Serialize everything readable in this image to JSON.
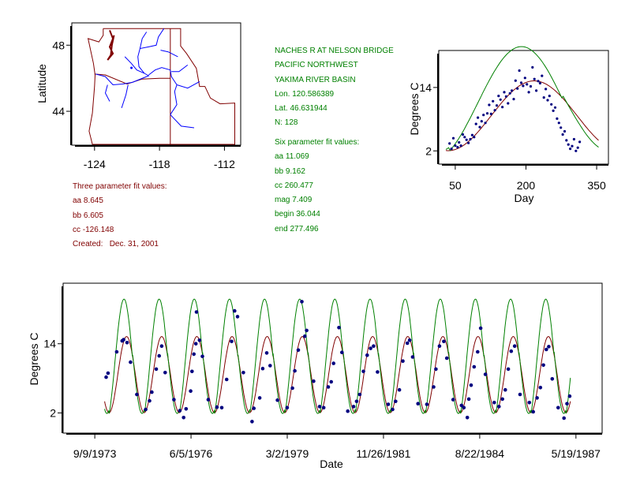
{
  "colors": {
    "site_info": "#008000",
    "three_param": "#800000",
    "points": "#000080",
    "fit3_line": "#800000",
    "fit6_line": "#008000",
    "map_border": "#800000",
    "map_rivers": "#0000ff",
    "frame": "#000000"
  },
  "site_info": {
    "station": "NACHES R AT NELSON BRIDGE",
    "region": "PACIFIC NORTHWEST",
    "basin": "YAKIMA RIVER BASIN",
    "lon": "Lon. 120.586389",
    "lat": "Lat. 46.631944",
    "n": "N: 128"
  },
  "six_param": {
    "heading": "Six parameter fit values:",
    "aa": "aa 11.069",
    "bb": "bb 9.162",
    "cc": "cc 260.477",
    "mag": "mag 7.409",
    "begin": "begin 36.044",
    "end": "end 277.496"
  },
  "three_param": {
    "heading": "Three parameter fit values:",
    "aa": "aa 8.645",
    "bb": "bb 6.605",
    "cc": "cc -126.148",
    "created": "Created:   Dec. 31, 2001"
  },
  "map": {
    "ylabel": "Latitude",
    "xticks": [
      -124,
      -118,
      -112
    ],
    "yticks": [
      44,
      48
    ],
    "xlim": [
      -126.1,
      -110.5
    ],
    "ylim": [
      41.95,
      49.35
    ],
    "site": {
      "lon": -120.59,
      "lat": 46.63
    },
    "state_line_lon": -117.0,
    "state_line_lat": 46.0
  },
  "chart_data": [
    {
      "type": "scatter",
      "title": "",
      "xlabel": "Day",
      "ylabel": "Degrees C",
      "xlim": [
        15,
        375
      ],
      "ylim": [
        -0.5,
        21.0
      ],
      "xticks": [
        50,
        200,
        350
      ],
      "yticks": [
        2,
        14
      ],
      "series": [
        {
          "kind": "points",
          "points": [
            [
              38,
              3.4
            ],
            [
              42,
              2.4
            ],
            [
              46,
              4.4
            ],
            [
              50,
              3.0
            ],
            [
              55,
              2.7
            ],
            [
              58,
              3.6
            ],
            [
              62,
              3.0
            ],
            [
              66,
              5.1
            ],
            [
              70,
              4.6
            ],
            [
              74,
              4.1
            ],
            [
              78,
              3.5
            ],
            [
              82,
              4.2
            ],
            [
              86,
              5.0
            ],
            [
              90,
              4.6
            ],
            [
              94,
              7.1
            ],
            [
              98,
              8.3
            ],
            [
              102,
              6.5
            ],
            [
              106,
              7.6
            ],
            [
              110,
              8.8
            ],
            [
              114,
              7.3
            ],
            [
              118,
              9.1
            ],
            [
              122,
              10.7
            ],
            [
              126,
              9.0
            ],
            [
              130,
              11.4
            ],
            [
              134,
              9.7
            ],
            [
              138,
              10.6
            ],
            [
              142,
              12.4
            ],
            [
              146,
              11.7
            ],
            [
              150,
              10.3
            ],
            [
              154,
              13.1
            ],
            [
              158,
              12.3
            ],
            [
              162,
              11.0
            ],
            [
              166,
              12.9
            ],
            [
              170,
              13.4
            ],
            [
              174,
              11.8
            ],
            [
              178,
              15.3
            ],
            [
              182,
              13.8
            ],
            [
              186,
              17.2
            ],
            [
              190,
              14.9
            ],
            [
              194,
              14.3
            ],
            [
              198,
              15.8
            ],
            [
              202,
              14.6
            ],
            [
              206,
              13.1
            ],
            [
              210,
              14.2
            ],
            [
              214,
              17.8
            ],
            [
              218,
              15.6
            ],
            [
              222,
              13.4
            ],
            [
              226,
              15.2
            ],
            [
              230,
              14.8
            ],
            [
              234,
              16.2
            ],
            [
              238,
              12.1
            ],
            [
              242,
              13.7
            ],
            [
              246,
              11.6
            ],
            [
              250,
              12.4
            ],
            [
              254,
              10.8
            ],
            [
              258,
              9.6
            ],
            [
              262,
              10.2
            ],
            [
              266,
              8.1
            ],
            [
              270,
              7.3
            ],
            [
              274,
              6.4
            ],
            [
              278,
              5.1
            ],
            [
              282,
              5.7
            ],
            [
              286,
              4.0
            ],
            [
              290,
              3.2
            ],
            [
              294,
              2.4
            ],
            [
              298,
              2.9
            ],
            [
              302,
              4.2
            ],
            [
              306,
              2.0
            ],
            [
              310,
              2.6
            ],
            [
              314,
              3.7
            ]
          ]
        },
        {
          "kind": "fit",
          "name": "",
          "model": "three_param",
          "aa": 8.645,
          "bb": 6.605,
          "cc": -126.148
        },
        {
          "kind": "fit",
          "name": "",
          "model": "six_param",
          "aa": 11.069,
          "bb": 9.162,
          "cc": 260.477,
          "mag": 7.409,
          "begin": 36.044,
          "end": 277.496
        }
      ]
    },
    {
      "type": "scatter",
      "title": "",
      "xlabel": "Date",
      "ylabel": "Degrees C",
      "xlim": [
        "1972-10-15",
        "1988-02-15"
      ],
      "ylim": [
        -1.5,
        24.5
      ],
      "yticks": [
        2,
        14
      ],
      "xticks": [
        "9/9/1973",
        "6/5/1976",
        "3/2/1979",
        "11/26/1981",
        "8/22/1984",
        "5/19/1987"
      ],
      "series": [
        {
          "kind": "points",
          "points": [
            [
              "1974-01-05",
              8.2
            ],
            [
              "1974-01-25",
              8.9
            ],
            [
              "1974-04-25",
              12.6
            ],
            [
              "1974-06-20",
              14.5
            ],
            [
              "1974-07-05",
              14.7
            ],
            [
              "1974-08-10",
              14.2
            ],
            [
              "1974-09-15",
              10.8
            ],
            [
              "1974-11-20",
              5.2
            ],
            [
              "1975-02-20",
              2.6
            ],
            [
              "1975-04-01",
              4.1
            ],
            [
              "1975-04-25",
              5.6
            ],
            [
              "1975-06-10",
              9.6
            ],
            [
              "1975-07-10",
              11.9
            ],
            [
              "1975-08-05",
              13.6
            ],
            [
              "1975-09-10",
              9.0
            ],
            [
              "1975-12-10",
              4.3
            ],
            [
              "1976-02-10",
              2.4
            ],
            [
              "1976-03-20",
              1.2
            ],
            [
              "1976-04-15",
              2.7
            ],
            [
              "1976-06-01",
              5.8
            ],
            [
              "1976-06-15",
              9.2
            ],
            [
              "1976-07-05",
              12.2
            ],
            [
              "1976-07-25",
              14.0
            ],
            [
              "1976-08-01",
              19.5
            ],
            [
              "1976-09-01",
              14.6
            ],
            [
              "1976-10-01",
              11.8
            ],
            [
              "1976-12-01",
              4.3
            ],
            [
              "1977-03-01",
              3.0
            ],
            [
              "1977-04-20",
              2.9
            ],
            [
              "1977-06-10",
              7.8
            ],
            [
              "1977-08-01",
              14.4
            ],
            [
              "1977-09-01",
              19.7
            ],
            [
              "1977-10-01",
              18.7
            ],
            [
              "1977-12-01",
              9.0
            ],
            [
              "1978-03-01",
              0.5
            ],
            [
              "1978-03-20",
              2.8
            ],
            [
              "1978-05-20",
              4.6
            ],
            [
              "1978-06-20",
              9.7
            ],
            [
              "1978-08-01",
              12.4
            ],
            [
              "1978-09-05",
              10.2
            ],
            [
              "1978-11-20",
              4.2
            ],
            [
              "1979-03-01",
              2.9
            ],
            [
              "1979-04-25",
              6.3
            ],
            [
              "1979-05-20",
              9.3
            ],
            [
              "1979-06-25",
              12.9
            ],
            [
              "1979-08-01",
              21.3
            ],
            [
              "1979-09-01",
              15.3
            ],
            [
              "1979-09-20",
              16.3
            ],
            [
              "1979-12-01",
              7.5
            ],
            [
              "1980-02-01",
              3.1
            ],
            [
              "1980-03-15",
              2.9
            ],
            [
              "1980-05-01",
              6.5
            ],
            [
              "1980-06-01",
              7.4
            ],
            [
              "1980-06-25",
              10.6
            ],
            [
              "1980-08-20",
              16.8
            ],
            [
              "1980-09-20",
              12.5
            ],
            [
              "1980-11-20",
              2.3
            ],
            [
              "1981-01-20",
              3.1
            ],
            [
              "1981-02-20",
              4.0
            ],
            [
              "1981-03-25",
              5.2
            ],
            [
              "1981-05-01",
              9.2
            ],
            [
              "1981-06-10",
              12.0
            ],
            [
              "1981-07-15",
              13.2
            ],
            [
              "1981-08-15",
              13.6
            ],
            [
              "1981-09-25",
              9.1
            ],
            [
              "1982-01-15",
              3.5
            ],
            [
              "1982-03-01",
              2.6
            ],
            [
              "1982-04-01",
              4.0
            ],
            [
              "1982-05-10",
              6.0
            ],
            [
              "1982-06-15",
              11.0
            ],
            [
              "1982-08-01",
              14.1
            ],
            [
              "1982-08-25",
              14.6
            ],
            [
              "1982-09-25",
              11.7
            ],
            [
              "1982-11-20",
              3.6
            ],
            [
              "1983-02-20",
              3.5
            ],
            [
              "1983-05-01",
              6.5
            ],
            [
              "1983-05-25",
              9.6
            ],
            [
              "1983-07-01",
              13.6
            ],
            [
              "1983-08-15",
              14.4
            ],
            [
              "1983-09-15",
              11.5
            ],
            [
              "1983-11-20",
              4.3
            ],
            [
              "1984-02-15",
              3.3
            ],
            [
              "1984-03-10",
              2.9
            ],
            [
              "1984-04-15",
              1.2
            ],
            [
              "1984-05-01",
              4.4
            ],
            [
              "1984-05-25",
              6.8
            ],
            [
              "1984-06-25",
              10.0
            ],
            [
              "1984-08-01",
              12.6
            ],
            [
              "1984-09-01",
              16.7
            ],
            [
              "1984-10-20",
              8.7
            ],
            [
              "1985-01-20",
              3.8
            ],
            [
              "1985-03-10",
              3.1
            ],
            [
              "1985-04-15",
              4.4
            ],
            [
              "1985-05-15",
              6.0
            ],
            [
              "1985-06-15",
              9.6
            ],
            [
              "1985-07-15",
              12.7
            ],
            [
              "1985-08-20",
              13.6
            ],
            [
              "1985-10-15",
              5.2
            ],
            [
              "1986-01-20",
              3.8
            ],
            [
              "1986-03-01",
              2.2
            ],
            [
              "1986-04-10",
              4.6
            ],
            [
              "1986-05-15",
              6.4
            ],
            [
              "1986-06-15",
              10.3
            ],
            [
              "1986-07-15",
              13.0
            ],
            [
              "1986-08-10",
              13.5
            ],
            [
              "1986-09-15",
              7.9
            ],
            [
              "1986-11-15",
              2.9
            ],
            [
              "1987-01-15",
              1.1
            ],
            [
              "1987-02-15",
              3.6
            ],
            [
              "1987-03-15",
              4.9
            ]
          ]
        },
        {
          "kind": "fit",
          "name": "",
          "model": "three_param",
          "from": "1973-12-20",
          "to": "1987-03-25"
        },
        {
          "kind": "fit",
          "name": "",
          "model": "six_param",
          "from": "1973-12-20",
          "to": "1987-03-25"
        }
      ]
    }
  ]
}
